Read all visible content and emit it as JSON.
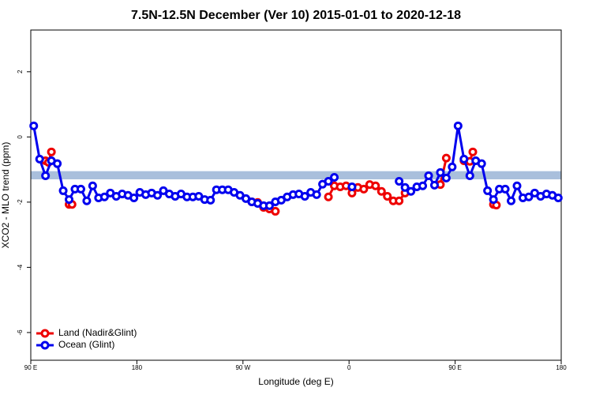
{
  "chart_data": {
    "type": "line",
    "title": "7.5N-12.5N December (Ver 10)   2015-01-01 to 2020-12-18",
    "x_label": "Longitude (deg E)",
    "y_label": "XCO2 - MLO trend (ppm)",
    "xlim": [
      90,
      540
    ],
    "xticks": [
      {
        "value": 90,
        "label": "90 E"
      },
      180,
      {
        "value": 270,
        "label": "90 W"
      },
      {
        "value": 360,
        "label": "0"
      },
      {
        "value": 450,
        "label": "90 E"
      },
      {
        "value": 540,
        "label": "180"
      }
    ],
    "ylim": [
      -6.85,
      3.28
    ],
    "yticks": [
      -6,
      -4,
      -2,
      0,
      2
    ],
    "band": [
      -1.3,
      -1.05
    ],
    "band_color": "#a9bfdc",
    "legend": "bottomleft",
    "series": [
      {
        "name": "Land (Nadir&Glint)",
        "color": "#ee0000",
        "x": [
          102.5,
          105,
          107.5,
          null,
          122.5,
          125,
          null,
          277.5,
          282.5,
          287.5,
          292.5,
          297.5,
          null,
          342.5,
          347.5,
          352.5,
          357.5,
          362.5,
          367.5,
          372.5,
          377.5,
          382.5,
          387.5,
          392.5,
          397.5,
          402.5,
          407.5,
          null,
          437.5,
          442.5,
          null,
          457.5,
          462.5,
          465,
          null,
          482.5,
          485
        ],
        "values": [
          -0.73,
          -0.78,
          -0.46,
          null,
          -2.07,
          -2.07,
          null,
          -1.99,
          -2.01,
          -2.16,
          -2.21,
          -2.28,
          null,
          -1.84,
          -1.5,
          -1.53,
          -1.5,
          -1.72,
          -1.55,
          -1.6,
          -1.46,
          -1.5,
          -1.67,
          -1.82,
          -1.96,
          -1.96,
          -1.72,
          null,
          -1.46,
          -0.65,
          null,
          -0.73,
          -0.75,
          -0.46,
          null,
          -2.07,
          -2.09
        ]
      },
      {
        "name": "Ocean (Glint)",
        "color": "#0000ee",
        "x": [
          92.5,
          97.5,
          102.5,
          107.5,
          112.5,
          117.5,
          122.5,
          127.5,
          132.5,
          137.5,
          142.5,
          147.5,
          152.5,
          157.5,
          162.5,
          167.5,
          172.5,
          177.5,
          182.5,
          187.5,
          192.5,
          197.5,
          202.5,
          207.5,
          212.5,
          217.5,
          222.5,
          227.5,
          232.5,
          237.5,
          242.5,
          247.5,
          252.5,
          257.5,
          262.5,
          267.5,
          272.5,
          277.5,
          282.5,
          287.5,
          292.5,
          297.5,
          302.5,
          307.5,
          312.5,
          317.5,
          322.5,
          327.5,
          332.5,
          337.5,
          342.5,
          347.5,
          null,
          362.5,
          null,
          402.5,
          407.5,
          412.5,
          417.5,
          422.5,
          427.5,
          432.5,
          437.5,
          442.5,
          447.5,
          452.5,
          457.5,
          462.5,
          467.5,
          472.5,
          477.5,
          482.5,
          487.5,
          492.5,
          497.5,
          502.5,
          507.5,
          512.5,
          517.5,
          522.5,
          527.5,
          532.5,
          537.5
        ],
        "values": [
          0.34,
          -0.68,
          -1.19,
          -0.73,
          -0.82,
          -1.65,
          -1.92,
          -1.6,
          -1.6,
          -1.96,
          -1.5,
          -1.87,
          -1.84,
          -1.72,
          -1.82,
          -1.75,
          -1.79,
          -1.87,
          -1.7,
          -1.77,
          -1.72,
          -1.79,
          -1.65,
          -1.75,
          -1.82,
          -1.75,
          -1.84,
          -1.84,
          -1.82,
          -1.92,
          -1.94,
          -1.62,
          -1.62,
          -1.62,
          -1.7,
          -1.79,
          -1.89,
          -1.99,
          -2.04,
          -2.11,
          -2.11,
          -1.99,
          -1.94,
          -1.84,
          -1.77,
          -1.75,
          -1.82,
          -1.7,
          -1.77,
          -1.45,
          -1.36,
          -1.24,
          null,
          -1.53,
          null,
          -1.36,
          -1.55,
          -1.67,
          -1.53,
          -1.5,
          -1.19,
          -1.48,
          -1.09,
          -1.26,
          -0.92,
          0.34,
          -0.68,
          -1.19,
          -0.73,
          -0.82,
          -1.65,
          -1.92,
          -1.6,
          -1.6,
          -1.96,
          -1.5,
          -1.87,
          -1.84,
          -1.72,
          -1.82,
          -1.75,
          -1.79,
          -1.87
        ]
      }
    ]
  }
}
